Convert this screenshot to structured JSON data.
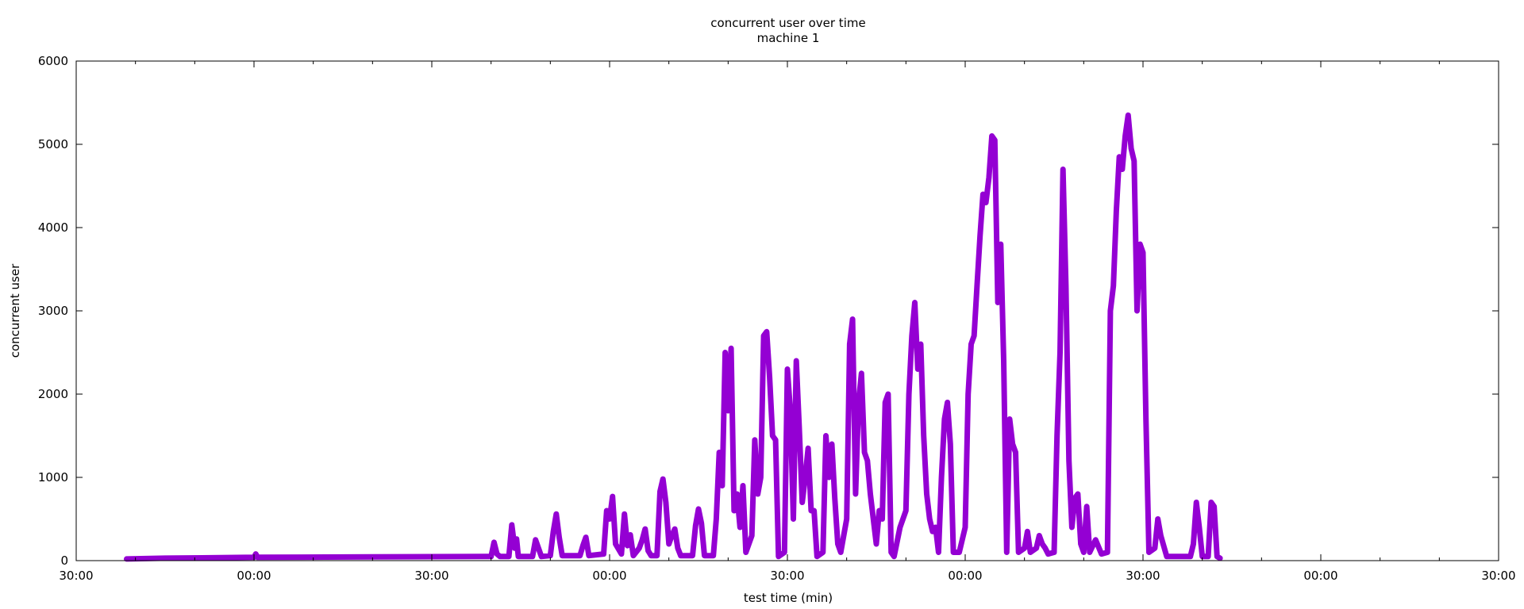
{
  "chart_data": {
    "type": "line",
    "title": "concurrent user over time",
    "subtitle": "machine 1",
    "xlabel": "test time (min)",
    "ylabel": "concurrent user",
    "xlim": [
      -30,
      210
    ],
    "ylim": [
      0,
      6000
    ],
    "x_ticks": [
      -30,
      0,
      30,
      60,
      90,
      120,
      150,
      180,
      210
    ],
    "x_tick_labels": [
      "30:00",
      "00:00",
      "30:00",
      "00:00",
      "30:00",
      "00:00",
      "30:00",
      "00:00",
      "30:00"
    ],
    "y_ticks": [
      0,
      1000,
      2000,
      3000,
      4000,
      5000,
      6000
    ],
    "y_tick_labels": [
      "0",
      "1000",
      "2000",
      "3000",
      "4000",
      "5000",
      "6000"
    ],
    "grid": false,
    "line_color": "#9400d3",
    "series": [
      {
        "values": [
          [
            -21.5,
            20
          ],
          [
            -15,
            30
          ],
          [
            0,
            40
          ],
          [
            0.3,
            80
          ],
          [
            0.6,
            40
          ],
          [
            20,
            45
          ],
          [
            39,
            50
          ],
          [
            40,
            50
          ],
          [
            40.5,
            220
          ],
          [
            41,
            80
          ],
          [
            41.5,
            50
          ],
          [
            43,
            50
          ],
          [
            43.5,
            430
          ],
          [
            44,
            150
          ],
          [
            44.3,
            260
          ],
          [
            44.6,
            50
          ],
          [
            47,
            50
          ],
          [
            47.5,
            250
          ],
          [
            48,
            150
          ],
          [
            48.5,
            50
          ],
          [
            50,
            60
          ],
          [
            50.5,
            350
          ],
          [
            51,
            560
          ],
          [
            51.5,
            280
          ],
          [
            52,
            60
          ],
          [
            55,
            60
          ],
          [
            55.5,
            180
          ],
          [
            56,
            280
          ],
          [
            56.5,
            60
          ],
          [
            59,
            80
          ],
          [
            59.5,
            600
          ],
          [
            60,
            500
          ],
          [
            60.5,
            770
          ],
          [
            61,
            200
          ],
          [
            62,
            80
          ],
          [
            62.5,
            560
          ],
          [
            63,
            180
          ],
          [
            63.5,
            310
          ],
          [
            64,
            60
          ],
          [
            65,
            150
          ],
          [
            65.5,
            250
          ],
          [
            66,
            380
          ],
          [
            66.5,
            120
          ],
          [
            67,
            60
          ],
          [
            68,
            60
          ],
          [
            68.5,
            830
          ],
          [
            69,
            980
          ],
          [
            69.5,
            700
          ],
          [
            70,
            200
          ],
          [
            70.5,
            300
          ],
          [
            71,
            380
          ],
          [
            71.5,
            150
          ],
          [
            72,
            60
          ],
          [
            74,
            60
          ],
          [
            74.5,
            420
          ],
          [
            75,
            620
          ],
          [
            75.5,
            450
          ],
          [
            76,
            60
          ],
          [
            77.5,
            60
          ],
          [
            78,
            500
          ],
          [
            78.5,
            1300
          ],
          [
            79,
            900
          ],
          [
            79.5,
            2500
          ],
          [
            80,
            1800
          ],
          [
            80.5,
            2550
          ],
          [
            81,
            600
          ],
          [
            81.5,
            800
          ],
          [
            82,
            400
          ],
          [
            82.5,
            900
          ],
          [
            83,
            100
          ],
          [
            84,
            300
          ],
          [
            84.5,
            1450
          ],
          [
            85,
            800
          ],
          [
            85.5,
            1000
          ],
          [
            86,
            2700
          ],
          [
            86.5,
            2750
          ],
          [
            87,
            2200
          ],
          [
            87.5,
            1500
          ],
          [
            88,
            1450
          ],
          [
            88.5,
            50
          ],
          [
            89.5,
            100
          ],
          [
            90,
            2300
          ],
          [
            90.5,
            1800
          ],
          [
            91,
            500
          ],
          [
            91.5,
            2400
          ],
          [
            92,
            1600
          ],
          [
            92.5,
            700
          ],
          [
            93,
            1000
          ],
          [
            93.5,
            1350
          ],
          [
            94,
            600
          ],
          [
            94.5,
            600
          ],
          [
            95,
            50
          ],
          [
            96,
            100
          ],
          [
            96.5,
            1500
          ],
          [
            97,
            1000
          ],
          [
            97.5,
            1400
          ],
          [
            98,
            750
          ],
          [
            98.5,
            200
          ],
          [
            99,
            100
          ],
          [
            100,
            500
          ],
          [
            100.5,
            2600
          ],
          [
            101,
            2900
          ],
          [
            101.5,
            800
          ],
          [
            102,
            1900
          ],
          [
            102.5,
            2250
          ],
          [
            103,
            1300
          ],
          [
            103.5,
            1200
          ],
          [
            104,
            800
          ],
          [
            105,
            200
          ],
          [
            105.5,
            600
          ],
          [
            106,
            500
          ],
          [
            106.5,
            1900
          ],
          [
            107,
            2000
          ],
          [
            107.5,
            100
          ],
          [
            108,
            50
          ],
          [
            109,
            400
          ],
          [
            109.5,
            500
          ],
          [
            110,
            600
          ],
          [
            110.5,
            2000
          ],
          [
            111,
            2700
          ],
          [
            111.5,
            3100
          ],
          [
            112,
            2300
          ],
          [
            112.5,
            2600
          ],
          [
            113,
            1500
          ],
          [
            113.5,
            800
          ],
          [
            114,
            500
          ],
          [
            114.5,
            350
          ],
          [
            115,
            400
          ],
          [
            115.5,
            100
          ],
          [
            116,
            1000
          ],
          [
            116.5,
            1700
          ],
          [
            117,
            1900
          ],
          [
            117.5,
            1400
          ],
          [
            118,
            100
          ],
          [
            119,
            100
          ],
          [
            120,
            400
          ],
          [
            120.5,
            2000
          ],
          [
            121,
            2600
          ],
          [
            121.5,
            2700
          ],
          [
            122,
            3300
          ],
          [
            122.5,
            3900
          ],
          [
            123,
            4400
          ],
          [
            123.5,
            4300
          ],
          [
            124,
            4600
          ],
          [
            124.5,
            5100
          ],
          [
            125,
            5050
          ],
          [
            125.5,
            3100
          ],
          [
            126,
            3800
          ],
          [
            126.5,
            2400
          ],
          [
            127,
            100
          ],
          [
            127.5,
            1700
          ],
          [
            128,
            1400
          ],
          [
            128.5,
            1300
          ],
          [
            129,
            100
          ],
          [
            130,
            150
          ],
          [
            130.5,
            350
          ],
          [
            131,
            100
          ],
          [
            132,
            150
          ],
          [
            132.5,
            300
          ],
          [
            133,
            200
          ],
          [
            133.5,
            150
          ],
          [
            134,
            80
          ],
          [
            135,
            100
          ],
          [
            135.5,
            1500
          ],
          [
            136,
            2500
          ],
          [
            136.5,
            4700
          ],
          [
            137,
            3300
          ],
          [
            137.5,
            1200
          ],
          [
            138,
            400
          ],
          [
            138.5,
            750
          ],
          [
            139,
            800
          ],
          [
            139.5,
            200
          ],
          [
            140,
            100
          ],
          [
            140.5,
            650
          ],
          [
            141,
            100
          ],
          [
            142,
            250
          ],
          [
            143,
            80
          ],
          [
            144,
            100
          ],
          [
            144.5,
            3000
          ],
          [
            145,
            3300
          ],
          [
            145.5,
            4200
          ],
          [
            146,
            4850
          ],
          [
            146.5,
            4700
          ],
          [
            147,
            5100
          ],
          [
            147.5,
            5350
          ],
          [
            148,
            4950
          ],
          [
            148.5,
            4800
          ],
          [
            149,
            3000
          ],
          [
            149.5,
            3800
          ],
          [
            150,
            3700
          ],
          [
            150.5,
            1700
          ],
          [
            151,
            100
          ],
          [
            152,
            150
          ],
          [
            152.5,
            500
          ],
          [
            153,
            300
          ],
          [
            154,
            50
          ],
          [
            158,
            50
          ],
          [
            158.5,
            200
          ],
          [
            159,
            700
          ],
          [
            159.5,
            400
          ],
          [
            160,
            50
          ],
          [
            161,
            50
          ],
          [
            161.5,
            700
          ],
          [
            162,
            650
          ],
          [
            162.5,
            50
          ],
          [
            163,
            30
          ]
        ]
      }
    ]
  }
}
